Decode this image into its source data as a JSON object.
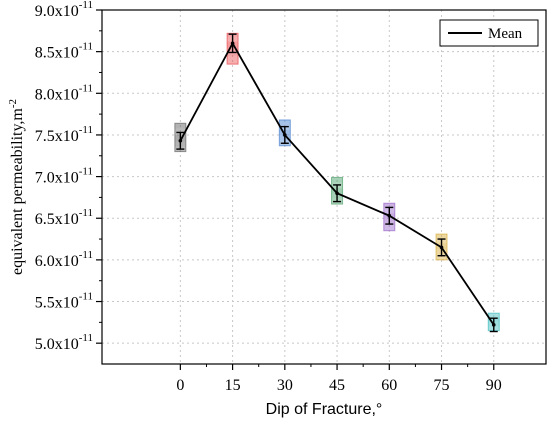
{
  "chart_data": {
    "type": "line",
    "xlabel": "Dip of Fracture,°",
    "ylabel": "equivalent permeability,m",
    "ylabel_superscript": "-2",
    "x": [
      0,
      15,
      30,
      45,
      60,
      75,
      90
    ],
    "xlim": [
      -22.5,
      105
    ],
    "ylim": [
      4.75e-11,
      9e-11
    ],
    "x_ticks": [
      0,
      15,
      30,
      45,
      60,
      75,
      90
    ],
    "y_ticks": [
      5e-11,
      5.5e-11,
      6e-11,
      6.5e-11,
      7e-11,
      7.5e-11,
      8e-11,
      8.5e-11,
      9e-11
    ],
    "y_tick_labels": [
      {
        "mantissa": "5.0x10",
        "exp": "-11"
      },
      {
        "mantissa": "5.5x10",
        "exp": "-11"
      },
      {
        "mantissa": "6.0x10",
        "exp": "-11"
      },
      {
        "mantissa": "6.5x10",
        "exp": "-11"
      },
      {
        "mantissa": "7.0x10",
        "exp": "-11"
      },
      {
        "mantissa": "7.5x10",
        "exp": "-11"
      },
      {
        "mantissa": "8.0x10",
        "exp": "-11"
      },
      {
        "mantissa": "8.5x10",
        "exp": "-11"
      },
      {
        "mantissa": "9.0x10",
        "exp": "-11"
      }
    ],
    "grid": true,
    "legend_position": "top-right",
    "series": [
      {
        "name": "Mean",
        "color": "#000000",
        "values": [
          7.43e-11,
          8.6e-11,
          7.5e-11,
          6.8e-11,
          6.53e-11,
          6.15e-11,
          5.22e-11
        ]
      }
    ],
    "error_bars": [
      {
        "x": 0,
        "low": 7.33e-11,
        "high": 7.53e-11
      },
      {
        "x": 15,
        "low": 8.49e-11,
        "high": 8.71e-11
      },
      {
        "x": 30,
        "low": 7.4e-11,
        "high": 7.6e-11
      },
      {
        "x": 45,
        "low": 6.7e-11,
        "high": 6.9e-11
      },
      {
        "x": 60,
        "low": 6.43e-11,
        "high": 6.63e-11
      },
      {
        "x": 75,
        "low": 6.05e-11,
        "high": 6.25e-11
      },
      {
        "x": 90,
        "low": 5.14e-11,
        "high": 5.3e-11
      }
    ],
    "boxes": [
      {
        "x": 0,
        "color": "#555555",
        "samples": [
          7.3e-11,
          7.36e-11,
          7.42e-11,
          7.5e-11,
          7.58e-11,
          7.64e-11
        ]
      },
      {
        "x": 15,
        "color": "#e8383d",
        "samples": [
          8.35e-11,
          8.45e-11,
          8.55e-11,
          8.62e-11,
          8.68e-11,
          8.72e-11
        ]
      },
      {
        "x": 30,
        "color": "#3a78c9",
        "samples": [
          7.37e-11,
          7.44e-11,
          7.5e-11,
          7.56e-11,
          7.62e-11,
          7.68e-11
        ]
      },
      {
        "x": 45,
        "color": "#3c9a5f",
        "samples": [
          6.67e-11,
          6.74e-11,
          6.8e-11,
          6.86e-11,
          6.93e-11,
          6.99e-11
        ]
      },
      {
        "x": 60,
        "color": "#8d55c2",
        "samples": [
          6.35e-11,
          6.42e-11,
          6.5e-11,
          6.56e-11,
          6.62e-11,
          6.68e-11
        ]
      },
      {
        "x": 75,
        "color": "#d3a62a",
        "samples": [
          6e-11,
          6.07e-11,
          6.13e-11,
          6.2e-11,
          6.26e-11,
          6.31e-11
        ]
      },
      {
        "x": 90,
        "color": "#2bb5b8",
        "samples": [
          5.15e-11,
          5.2e-11,
          5.26e-11,
          5.31e-11,
          5.36e-11
        ]
      }
    ]
  }
}
